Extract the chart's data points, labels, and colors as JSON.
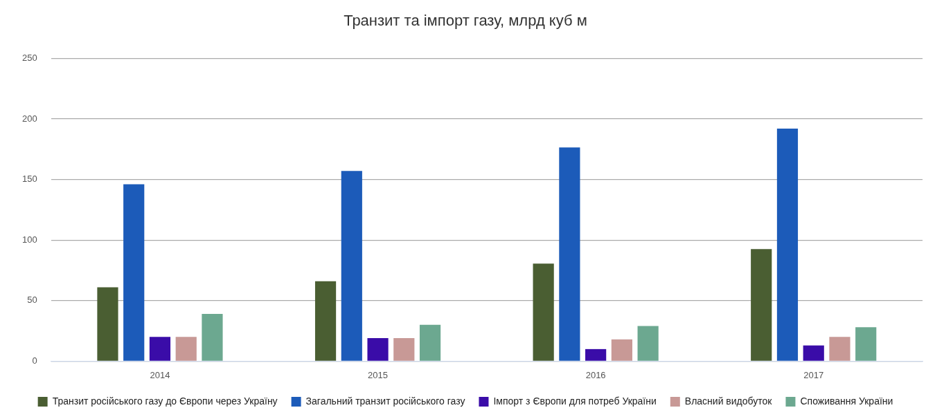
{
  "chart_data": {
    "type": "bar",
    "title": "Транзит та імпорт газу, млрд куб м",
    "categories": [
      "2014",
      "2015",
      "2016",
      "2017"
    ],
    "series": [
      {
        "name": "Транзит російського газу до Європи через Україну",
        "color": "#4a5e32",
        "values": [
          61,
          66,
          80.5,
          92.5
        ]
      },
      {
        "name": "Загальний транзит російського газу",
        "color": "#1c5bb9",
        "values": [
          146,
          157,
          176.5,
          192
        ]
      },
      {
        "name": "Імпорт з Європи для потреб України",
        "color": "#3a0ca8",
        "values": [
          20,
          19,
          10,
          13
        ]
      },
      {
        "name": "Власний видобуток",
        "color": "#c89996",
        "values": [
          20,
          19,
          18,
          20
        ]
      },
      {
        "name": "Споживання України",
        "color": "#6ca890",
        "values": [
          39,
          30,
          29,
          28
        ]
      }
    ],
    "ylim": [
      0,
      250
    ],
    "yticks": [
      0,
      50,
      100,
      150,
      200,
      250
    ],
    "grid": "y",
    "legend": "bottom"
  }
}
